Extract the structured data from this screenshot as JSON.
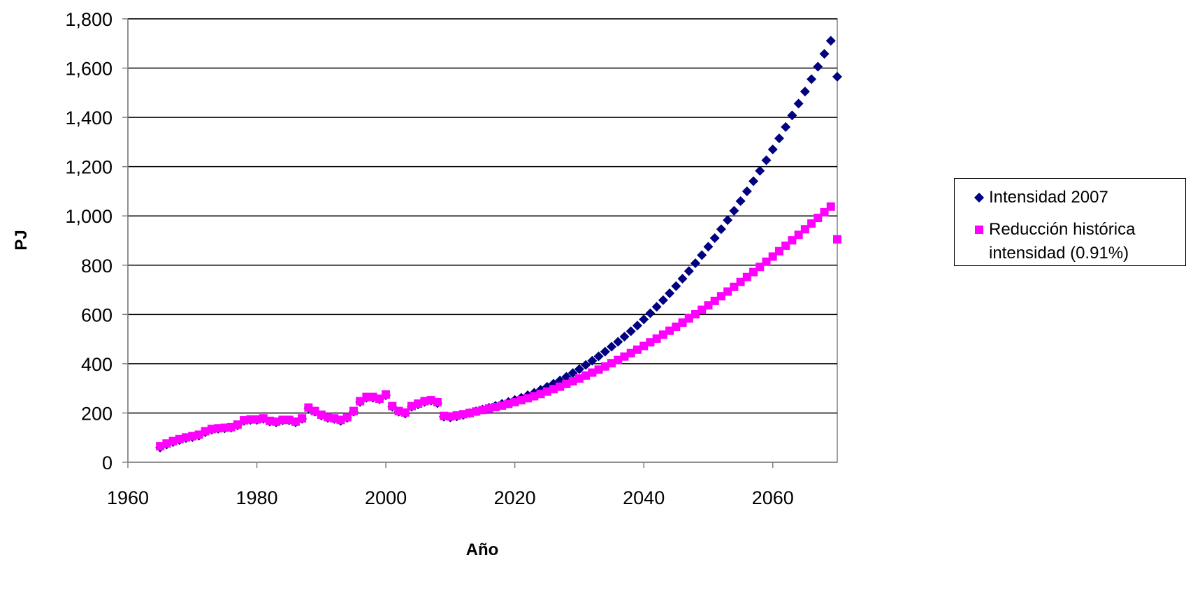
{
  "chart_data": {
    "type": "scatter",
    "title": "",
    "xlabel": "Año",
    "ylabel": "PJ",
    "xlim": [
      1960,
      2070
    ],
    "ylim": [
      0,
      1800
    ],
    "x_ticks": [
      1960,
      1980,
      2000,
      2020,
      2040,
      2060
    ],
    "y_ticks": [
      0,
      200,
      400,
      600,
      800,
      1000,
      1200,
      1400,
      1600,
      1800
    ],
    "y_tick_labels": [
      "0",
      "200",
      "400",
      "600",
      "800",
      "1,000",
      "1,200",
      "1,400",
      "1,600",
      "1,800"
    ],
    "grid": "horizontal",
    "legend_position": "right",
    "series": [
      {
        "name": "Intensidad 2007",
        "marker": "diamond",
        "color": "#000080",
        "x": [
          1965,
          1966,
          1967,
          1968,
          1969,
          1970,
          1971,
          1972,
          1973,
          1974,
          1975,
          1976,
          1977,
          1978,
          1979,
          1980,
          1981,
          1982,
          1983,
          1984,
          1985,
          1986,
          1987,
          1988,
          1989,
          1990,
          1991,
          1992,
          1993,
          1994,
          1995,
          1996,
          1997,
          1998,
          1999,
          2000,
          2001,
          2002,
          2003,
          2004,
          2005,
          2006,
          2007,
          2008,
          2009,
          2010,
          2011,
          2012,
          2013,
          2014,
          2015,
          2016,
          2017,
          2018,
          2019,
          2020,
          2021,
          2022,
          2023,
          2024,
          2025,
          2026,
          2027,
          2028,
          2029,
          2030,
          2031,
          2032,
          2033,
          2034,
          2035,
          2036,
          2037,
          2038,
          2039,
          2040,
          2041,
          2042,
          2043,
          2044,
          2045,
          2046,
          2047,
          2048,
          2049,
          2050,
          2051,
          2052,
          2053,
          2054,
          2055,
          2056,
          2057,
          2058,
          2059,
          2060,
          2061,
          2062,
          2063,
          2064,
          2065,
          2066,
          2067,
          2068,
          2069,
          2070
        ],
        "y": [
          60,
          72,
          82,
          90,
          98,
          102,
          108,
          122,
          132,
          136,
          138,
          140,
          150,
          168,
          172,
          172,
          176,
          165,
          162,
          170,
          170,
          162,
          176,
          220,
          205,
          190,
          180,
          176,
          168,
          180,
          205,
          245,
          262,
          262,
          256,
          272,
          225,
          205,
          198,
          225,
          235,
          245,
          250,
          240,
          185,
          182,
          186,
          192,
          200,
          207,
          214,
          221,
          229,
          237,
          245,
          253,
          262,
          272,
          282,
          294,
          306,
          319,
          332,
          347,
          362,
          378,
          395,
          412,
          430,
          449,
          469,
          489,
          510,
          532,
          555,
          580,
          605,
          631,
          658,
          686,
          715,
          745,
          776,
          808,
          841,
          875,
          910,
          946,
          983,
          1021,
          1060,
          1100,
          1141,
          1183,
          1226,
          1270,
          1315,
          1361,
          1408,
          1456,
          1505,
          1555,
          1606,
          1658,
          1711,
          1565
        ]
      },
      {
        "name": "Reducción histórica intensidad (0.91%)",
        "marker": "square",
        "color": "#FF00FF",
        "x": [
          1965,
          1966,
          1967,
          1968,
          1969,
          1970,
          1971,
          1972,
          1973,
          1974,
          1975,
          1976,
          1977,
          1978,
          1979,
          1980,
          1981,
          1982,
          1983,
          1984,
          1985,
          1986,
          1987,
          1988,
          1989,
          1990,
          1991,
          1992,
          1993,
          1994,
          1995,
          1996,
          1997,
          1998,
          1999,
          2000,
          2001,
          2002,
          2003,
          2004,
          2005,
          2006,
          2007,
          2008,
          2009,
          2010,
          2011,
          2012,
          2013,
          2014,
          2015,
          2016,
          2017,
          2018,
          2019,
          2020,
          2021,
          2022,
          2023,
          2024,
          2025,
          2026,
          2027,
          2028,
          2029,
          2030,
          2031,
          2032,
          2033,
          2034,
          2035,
          2036,
          2037,
          2038,
          2039,
          2040,
          2041,
          2042,
          2043,
          2044,
          2045,
          2046,
          2047,
          2048,
          2049,
          2050,
          2051,
          2052,
          2053,
          2054,
          2055,
          2056,
          2057,
          2058,
          2059,
          2060,
          2061,
          2062,
          2063,
          2064,
          2065,
          2066,
          2067,
          2068,
          2069,
          2070
        ],
        "y": [
          65,
          76,
          86,
          94,
          101,
          106,
          112,
          126,
          135,
          138,
          140,
          142,
          153,
          170,
          174,
          174,
          178,
          168,
          165,
          172,
          172,
          165,
          178,
          222,
          208,
          193,
          183,
          178,
          172,
          183,
          208,
          248,
          265,
          265,
          258,
          275,
          228,
          208,
          202,
          228,
          238,
          248,
          252,
          244,
          188,
          186,
          190,
          195,
          200,
          206,
          212,
          218,
          224,
          230,
          237,
          244,
          252,
          260,
          268,
          277,
          287,
          297,
          307,
          318,
          329,
          340,
          352,
          364,
          376,
          389,
          402,
          415,
          429,
          443,
          457,
          472,
          487,
          502,
          518,
          534,
          550,
          567,
          584,
          601,
          619,
          637,
          655,
          674,
          693,
          712,
          732,
          752,
          772,
          793,
          814,
          835,
          857,
          879,
          901,
          923,
          946,
          969,
          992,
          1015,
          1038,
          905
        ]
      }
    ]
  },
  "legend": {
    "items": [
      {
        "label": "Intensidad 2007",
        "marker": "diamond-icon",
        "color": "#000080"
      },
      {
        "label": "Reducción histórica intensidad (0.91%)",
        "marker": "square-icon",
        "color": "#FF00FF"
      }
    ]
  }
}
